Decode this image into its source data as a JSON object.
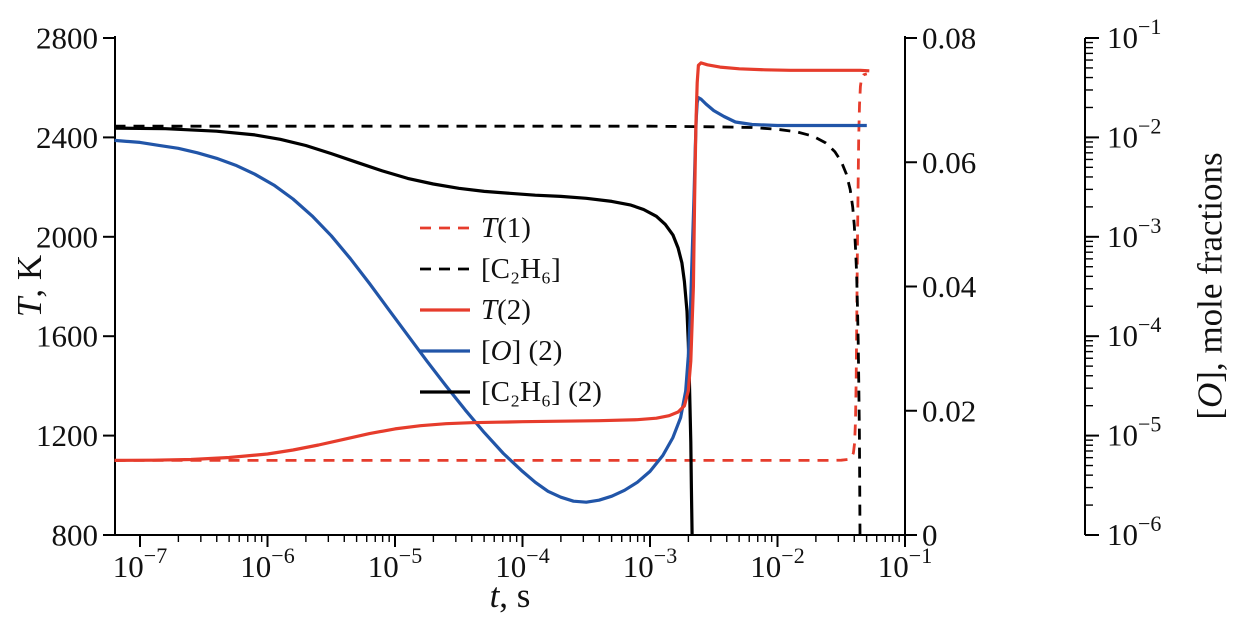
{
  "figure": {
    "left_axis_title": {
      "italic": "T",
      "rest": ", K"
    },
    "x_axis_title": {
      "italic": "t",
      "rest": ", s"
    },
    "right_log_axis_title": {
      "pre": "[",
      "italic": "O",
      "rest": "], mole fractions"
    }
  },
  "chart_data": {
    "type": "line",
    "title": "",
    "xlabel": "t, s",
    "x_axis": {
      "scale": "log",
      "min": 1e-07,
      "max": 0.1,
      "tick_exponents": [
        -7,
        -6,
        -5,
        -4,
        -3,
        -2,
        -1
      ]
    },
    "left_y_axis": {
      "label": "T, K",
      "min": 800,
      "max": 2800,
      "ticks": [
        800,
        1200,
        1600,
        2000,
        2400,
        2800
      ]
    },
    "right_y_axis": {
      "label": "mole fraction",
      "min": 0,
      "max": 0.08,
      "tick_labels": [
        "0",
        "0.02",
        "0.04",
        "0.06",
        "0.08"
      ],
      "ticks": [
        0,
        0.02,
        0.04,
        0.06,
        0.08
      ]
    },
    "right_log_axis": {
      "label": "[O], mole fractions",
      "scale": "log",
      "min_exp": -6,
      "max_exp": -1,
      "tick_exponents": [
        -1,
        -2,
        -3,
        -4,
        -5,
        -6
      ]
    },
    "colors": {
      "red": "#e63c2c",
      "blue": "#2155a8",
      "black": "#000000"
    },
    "series": [
      {
        "id": "T1",
        "color": "red",
        "dash": true,
        "width": 2.8,
        "yaxis": "T",
        "points": [
          [
            -7.2,
            1100
          ],
          [
            -6,
            1100
          ],
          [
            -5,
            1100
          ],
          [
            -4,
            1100
          ],
          [
            -3,
            1100
          ],
          [
            -2.2,
            1100
          ],
          [
            -1.8,
            1100
          ],
          [
            -1.6,
            1100
          ],
          [
            -1.5,
            1101
          ],
          [
            -1.45,
            1104
          ],
          [
            -1.42,
            1112
          ],
          [
            -1.405,
            1130
          ],
          [
            -1.395,
            1170
          ],
          [
            -1.388,
            1260
          ],
          [
            -1.383,
            1430
          ],
          [
            -1.378,
            1680
          ],
          [
            -1.373,
            1950
          ],
          [
            -1.368,
            2200
          ],
          [
            -1.363,
            2400
          ],
          [
            -1.357,
            2530
          ],
          [
            -1.35,
            2605
          ],
          [
            -1.34,
            2640
          ],
          [
            -1.325,
            2652
          ],
          [
            -1.3,
            2656
          ]
        ]
      },
      {
        "id": "C2H6_1",
        "color": "black",
        "dash": true,
        "width": 2.8,
        "yaxis": "C",
        "points": [
          [
            -7.2,
            0.0658
          ],
          [
            -6,
            0.0658
          ],
          [
            -5,
            0.0658
          ],
          [
            -4,
            0.0658
          ],
          [
            -3,
            0.0658
          ],
          [
            -2.5,
            0.0657
          ],
          [
            -2.2,
            0.0656
          ],
          [
            -2.0,
            0.0653
          ],
          [
            -1.85,
            0.0649
          ],
          [
            -1.72,
            0.0642
          ],
          [
            -1.62,
            0.0631
          ],
          [
            -1.55,
            0.0617
          ],
          [
            -1.5,
            0.0601
          ],
          [
            -1.46,
            0.0581
          ],
          [
            -1.43,
            0.0556
          ],
          [
            -1.41,
            0.0528
          ],
          [
            -1.398,
            0.0498
          ],
          [
            -1.388,
            0.0462
          ],
          [
            -1.38,
            0.0422
          ],
          [
            -1.373,
            0.0372
          ],
          [
            -1.367,
            0.0312
          ],
          [
            -1.362,
            0.0242
          ],
          [
            -1.358,
            0.0165
          ],
          [
            -1.355,
            0.0085
          ],
          [
            -1.353,
            0
          ]
        ]
      },
      {
        "id": "C2H6_2",
        "color": "black",
        "dash": false,
        "width": 3.2,
        "yaxis": "C",
        "points": [
          [
            -7.2,
            0.0655
          ],
          [
            -6.8,
            0.0654
          ],
          [
            -6.4,
            0.065
          ],
          [
            -6.1,
            0.0644
          ],
          [
            -5.9,
            0.0637
          ],
          [
            -5.7,
            0.0627
          ],
          [
            -5.5,
            0.0614
          ],
          [
            -5.3,
            0.06
          ],
          [
            -5.1,
            0.0586
          ],
          [
            -4.9,
            0.0574
          ],
          [
            -4.7,
            0.0565
          ],
          [
            -4.5,
            0.0558
          ],
          [
            -4.3,
            0.0553
          ],
          [
            -4.1,
            0.055
          ],
          [
            -3.9,
            0.0547
          ],
          [
            -3.7,
            0.0545
          ],
          [
            -3.5,
            0.0542
          ],
          [
            -3.3,
            0.0537
          ],
          [
            -3.15,
            0.0531
          ],
          [
            -3.05,
            0.0524
          ],
          [
            -2.95,
            0.0513
          ],
          [
            -2.88,
            0.05
          ],
          [
            -2.82,
            0.0483
          ],
          [
            -2.78,
            0.0462
          ],
          [
            -2.75,
            0.0438
          ],
          [
            -2.73,
            0.0408
          ],
          [
            -2.71,
            0.036
          ],
          [
            -2.7,
            0.031
          ],
          [
            -2.69,
            0.024
          ],
          [
            -2.68,
            0.015
          ],
          [
            -2.675,
            0.0075
          ],
          [
            -2.67,
            0
          ]
        ]
      },
      {
        "id": "O2",
        "color": "blue",
        "dash": false,
        "width": 3.2,
        "yaxis": "logC",
        "points": [
          [
            -7.2,
            -2.03
          ],
          [
            -7.0,
            -2.05
          ],
          [
            -6.85,
            -2.08
          ],
          [
            -6.7,
            -2.11
          ],
          [
            -6.55,
            -2.155
          ],
          [
            -6.4,
            -2.21
          ],
          [
            -6.25,
            -2.28
          ],
          [
            -6.1,
            -2.37
          ],
          [
            -5.95,
            -2.48
          ],
          [
            -5.8,
            -2.62
          ],
          [
            -5.65,
            -2.79
          ],
          [
            -5.5,
            -2.99
          ],
          [
            -5.35,
            -3.22
          ],
          [
            -5.2,
            -3.47
          ],
          [
            -5.05,
            -3.73
          ],
          [
            -4.9,
            -3.99
          ],
          [
            -4.75,
            -4.25
          ],
          [
            -4.6,
            -4.5
          ],
          [
            -4.45,
            -4.74
          ],
          [
            -4.3,
            -4.97
          ],
          [
            -4.15,
            -5.18
          ],
          [
            -4.0,
            -5.36
          ],
          [
            -3.9,
            -5.47
          ],
          [
            -3.8,
            -5.56
          ],
          [
            -3.7,
            -5.62
          ],
          [
            -3.6,
            -5.66
          ],
          [
            -3.5,
            -5.67
          ],
          [
            -3.4,
            -5.65
          ],
          [
            -3.3,
            -5.61
          ],
          [
            -3.2,
            -5.55
          ],
          [
            -3.1,
            -5.47
          ],
          [
            -3.0,
            -5.36
          ],
          [
            -2.9,
            -5.2
          ],
          [
            -2.82,
            -5.02
          ],
          [
            -2.76,
            -4.82
          ],
          [
            -2.72,
            -4.55
          ],
          [
            -2.7,
            -4.2
          ],
          [
            -2.685,
            -3.8
          ],
          [
            -2.67,
            -3.2
          ],
          [
            -2.655,
            -2.6
          ],
          [
            -2.645,
            -2.1
          ],
          [
            -2.637,
            -1.8
          ],
          [
            -2.63,
            -1.65
          ],
          [
            -2.62,
            -1.6
          ],
          [
            -2.6,
            -1.615
          ],
          [
            -2.56,
            -1.665
          ],
          [
            -2.5,
            -1.73
          ],
          [
            -2.42,
            -1.79
          ],
          [
            -2.33,
            -1.845
          ],
          [
            -2.2,
            -1.87
          ],
          [
            -2.0,
            -1.88
          ],
          [
            -1.7,
            -1.88
          ],
          [
            -1.45,
            -1.88
          ],
          [
            -1.3,
            -1.88
          ]
        ]
      },
      {
        "id": "T2",
        "color": "red",
        "dash": false,
        "width": 3.2,
        "yaxis": "T",
        "points": [
          [
            -7.2,
            1100
          ],
          [
            -6.9,
            1101
          ],
          [
            -6.6,
            1104
          ],
          [
            -6.3,
            1112
          ],
          [
            -6.0,
            1126
          ],
          [
            -5.8,
            1142
          ],
          [
            -5.6,
            1162
          ],
          [
            -5.4,
            1185
          ],
          [
            -5.2,
            1208
          ],
          [
            -5.0,
            1227
          ],
          [
            -4.8,
            1240
          ],
          [
            -4.6,
            1248
          ],
          [
            -4.4,
            1252
          ],
          [
            -4.2,
            1254
          ],
          [
            -4.0,
            1256
          ],
          [
            -3.7,
            1258
          ],
          [
            -3.4,
            1260
          ],
          [
            -3.1,
            1264
          ],
          [
            -2.95,
            1270
          ],
          [
            -2.85,
            1280
          ],
          [
            -2.78,
            1295
          ],
          [
            -2.73,
            1320
          ],
          [
            -2.7,
            1380
          ],
          [
            -2.68,
            1500
          ],
          [
            -2.66,
            1800
          ],
          [
            -2.65,
            2150
          ],
          [
            -2.64,
            2450
          ],
          [
            -2.63,
            2620
          ],
          [
            -2.62,
            2690
          ],
          [
            -2.6,
            2700
          ],
          [
            -2.55,
            2692
          ],
          [
            -2.45,
            2683
          ],
          [
            -2.3,
            2676
          ],
          [
            -2.1,
            2672
          ],
          [
            -1.9,
            2670
          ],
          [
            -1.7,
            2670
          ],
          [
            -1.5,
            2670
          ],
          [
            -1.35,
            2670
          ],
          [
            -1.28,
            2668
          ]
        ]
      }
    ],
    "legend": {
      "position": "inside-center",
      "items": [
        {
          "series": "T1",
          "parts": [
            {
              "text": "T",
              "italic": true
            },
            {
              "text": "(1)",
              "italic": false
            }
          ]
        },
        {
          "series": "C2H6_1",
          "parts": [
            {
              "text": "[C₂H₆]",
              "italic": false
            }
          ]
        },
        {
          "series": "T2",
          "parts": [
            {
              "text": "T",
              "italic": true
            },
            {
              "text": "(2)",
              "italic": false
            }
          ]
        },
        {
          "series": "O2",
          "parts": [
            {
              "text": "[",
              "italic": false
            },
            {
              "text": "O",
              "italic": true
            },
            {
              "text": "] (2)",
              "italic": false
            }
          ]
        },
        {
          "series": "C2H6_2",
          "parts": [
            {
              "text": "[C₂H₆] (2)",
              "italic": false
            }
          ]
        }
      ]
    }
  }
}
